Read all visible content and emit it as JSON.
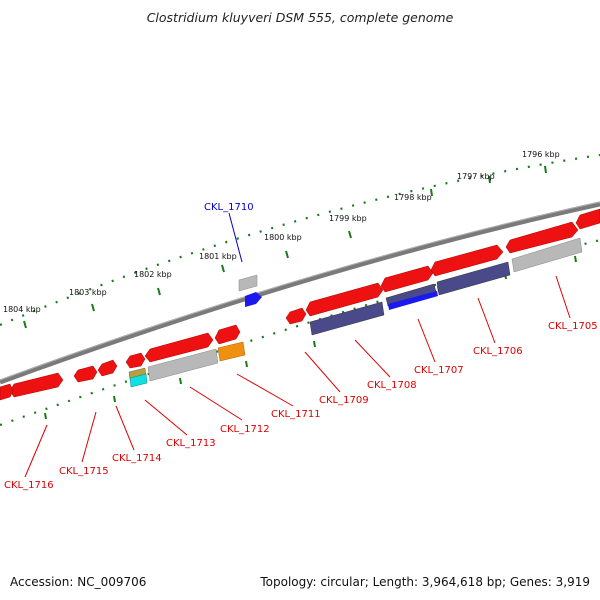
{
  "title": "Clostridium kluyveri DSM 555, complete genome",
  "accession": "Accession: NC_009706",
  "summary": "Topology: circular; Length: 3,964,618 bp; Genes: 3,919",
  "scale_labels": [
    "1796 kbp",
    "1797 kbp",
    "1798 kbp",
    "1799 kbp",
    "1800 kbp",
    "1801 kbp",
    "1802 kbp",
    "1803 kbp",
    "1804 kbp"
  ],
  "gene_labels": [
    "CKL_1705",
    "CKL_1706",
    "CKL_1707",
    "CKL_1708",
    "CKL_1709",
    "CKL_1710",
    "CKL_1711",
    "CKL_1712",
    "CKL_1713",
    "CKL_1714",
    "CKL_1715",
    "CKL_1716"
  ],
  "colors": {
    "backbone": "#7a7a7a",
    "gene": "#ee1111",
    "cds_protein": "#4a4a8a",
    "cds_blue": "#1a1aee",
    "cds_gray": "#b8b8b8",
    "cds_orange": "#f09010",
    "cds_cyan": "#10e0e0",
    "ticks": "#1a7a1a",
    "label_red": "#dd0000",
    "label_blue": "#0000cc"
  }
}
